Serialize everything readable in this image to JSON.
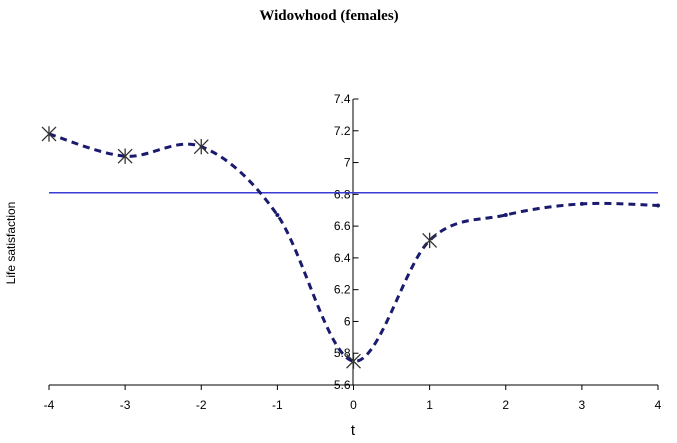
{
  "chart_data": {
    "type": "line",
    "title": "Widowhood (females)",
    "xlabel": "t",
    "ylabel": "Life satisfaction",
    "xlim": [
      -4,
      4
    ],
    "ylim": [
      5.6,
      7.4
    ],
    "x_ticks": [
      "-4",
      "-3",
      "-2",
      "-1",
      "0",
      "1",
      "2",
      "3",
      "4"
    ],
    "y_ticks": [
      "7.4",
      "7.2",
      "7",
      "6.8",
      "6.6",
      "6.4",
      "6.2",
      "6",
      "5.8",
      "5.6"
    ],
    "reference_line": {
      "y": 6.81,
      "color": "#3b3bd6"
    },
    "series": [
      {
        "style": "dashed",
        "color": "#1a1a6e",
        "x": [
          -4,
          -3,
          -2,
          -1,
          0,
          1,
          2,
          3,
          4
        ],
        "values": [
          7.18,
          7.04,
          7.1,
          6.67,
          5.75,
          6.51,
          6.67,
          6.74,
          6.73
        ],
        "marker_x": [
          -4,
          -3,
          -2,
          0,
          1
        ]
      }
    ],
    "grid": false,
    "legend": "none"
  }
}
